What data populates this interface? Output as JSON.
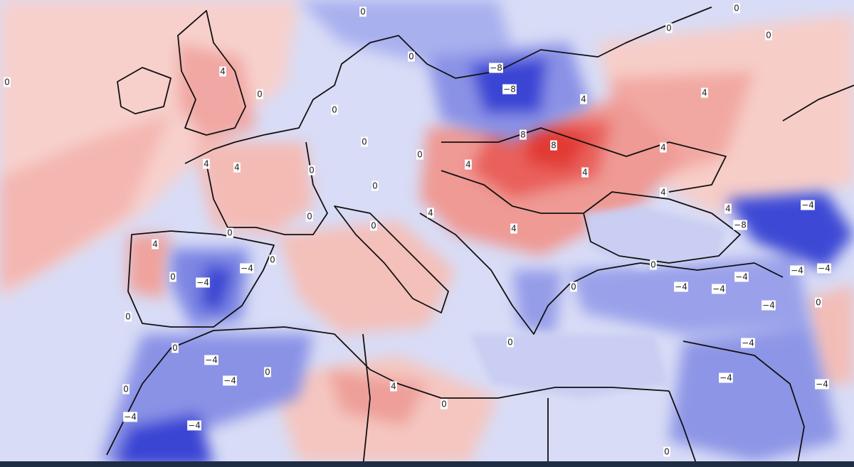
{
  "contour_labels": [
    "0",
    "4",
    "0",
    "0",
    "0",
    "4",
    "4",
    "0",
    "0",
    "0",
    "0",
    "0",
    "4",
    "4",
    "0",
    "8",
    "8",
    "4",
    "−8",
    "−8",
    "4",
    "4",
    "4",
    "4",
    "4",
    "4",
    "−4",
    "−8",
    "0",
    "0",
    "0",
    "0",
    "0",
    "4",
    "0",
    "−4",
    "−4",
    "0",
    "0",
    "0",
    "−4",
    "−4",
    "0",
    "−4",
    "−4",
    "0",
    "4",
    "0",
    "0",
    "0",
    "0",
    "−4",
    "−4",
    "−4",
    "−4",
    "−4",
    "−4",
    "−4",
    "−4",
    "−4",
    "0",
    "0"
  ]
}
